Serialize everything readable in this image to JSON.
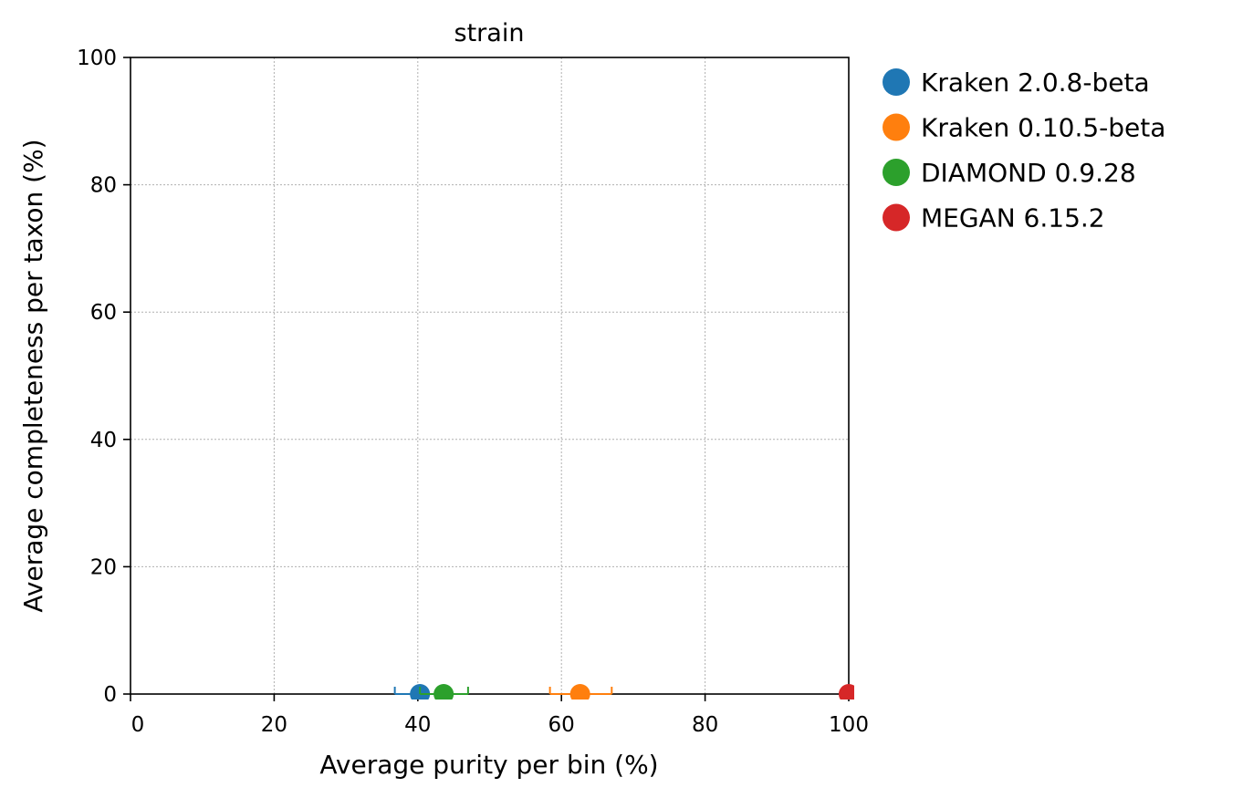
{
  "chart_data": {
    "type": "scatter",
    "title": "strain",
    "xlabel": "Average purity per bin (%)",
    "ylabel": "Average completeness per taxon (%)",
    "xlim": [
      0,
      100
    ],
    "ylim": [
      0,
      100
    ],
    "x_ticks": [
      0,
      20,
      40,
      60,
      80,
      100
    ],
    "y_ticks": [
      0,
      20,
      40,
      60,
      80,
      100
    ],
    "x_tick_labels": [
      "0",
      "20",
      "40",
      "60",
      "80",
      "100"
    ],
    "y_tick_labels": [
      "0",
      "20",
      "40",
      "60",
      "80",
      "100"
    ],
    "grid": true,
    "legend_position": "outside-top-right",
    "series": [
      {
        "name": "Kraken 2.0.8-beta",
        "color": "#1f77b4",
        "x": 40.3,
        "y": 0,
        "x_err": [
          36.8,
          43.6
        ]
      },
      {
        "name": "Kraken 0.10.5-beta",
        "color": "#ff7f0e",
        "x": 62.6,
        "y": 0,
        "x_err": [
          58.4,
          67.0
        ]
      },
      {
        "name": "DIAMOND 0.9.28",
        "color": "#2ca02c",
        "x": 43.6,
        "y": 0,
        "x_err": [
          40.3,
          47.0
        ]
      },
      {
        "name": "MEGAN 6.15.2",
        "color": "#d62728",
        "x": 100,
        "y": 0,
        "x_err": [
          100,
          100
        ]
      }
    ]
  }
}
